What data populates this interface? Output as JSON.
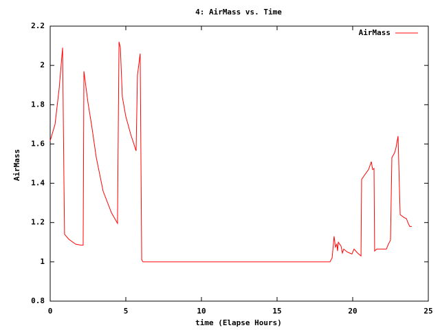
{
  "chart_data": {
    "type": "line",
    "title": "4: AirMass vs. Time",
    "x_label": "time (Elapse Hours)",
    "y_label": "AirMass",
    "xlim": [
      0,
      25
    ],
    "xticks": [
      0,
      5,
      10,
      15,
      20,
      25
    ],
    "ylim": [
      0.8,
      2.2
    ],
    "yticks": [
      0.8,
      1,
      1.2,
      1.4,
      1.6,
      1.8,
      2,
      2.2
    ],
    "legend": "top-right",
    "series": [
      {
        "name": "AirMass",
        "color": "#ff0000",
        "x": [
          0,
          0.32,
          0.59,
          0.82,
          0.91,
          0.95,
          1.23,
          1.68,
          2.05,
          2.18,
          2.23,
          2.5,
          2.73,
          3.05,
          3.5,
          4.05,
          4.45,
          4.55,
          4.64,
          4.77,
          5.0,
          5.32,
          5.68,
          5.77,
          5.95,
          6.0,
          6.05,
          6.14,
          18.5,
          18.64,
          18.77,
          18.86,
          18.95,
          19.0,
          19.05,
          19.23,
          19.32,
          19.41,
          19.64,
          19.95,
          20.09,
          20.32,
          20.55,
          20.59,
          20.77,
          21.05,
          21.23,
          21.32,
          21.41,
          21.45,
          21.59,
          21.9,
          22.23,
          22.36,
          22.5,
          22.59,
          22.77,
          22.86,
          23.0,
          23.05,
          23.14,
          23.41,
          23.55,
          23.68,
          23.77,
          23.91
        ],
        "values": [
          1.616,
          1.7,
          1.88,
          2.09,
          1.41,
          1.14,
          1.115,
          1.09,
          1.085,
          1.085,
          1.97,
          1.81,
          1.7,
          1.53,
          1.36,
          1.25,
          1.196,
          2.12,
          2.09,
          1.84,
          1.74,
          1.65,
          1.565,
          1.95,
          2.06,
          1.53,
          1.01,
          1.0,
          1.0,
          1.02,
          1.13,
          1.075,
          1.09,
          1.055,
          1.1,
          1.08,
          1.045,
          1.065,
          1.05,
          1.04,
          1.065,
          1.045,
          1.03,
          1.42,
          1.44,
          1.47,
          1.51,
          1.47,
          1.475,
          1.055,
          1.065,
          1.065,
          1.065,
          1.09,
          1.11,
          1.53,
          1.555,
          1.58,
          1.64,
          1.49,
          1.24,
          1.225,
          1.22,
          1.195,
          1.18,
          1.18
        ]
      }
    ]
  }
}
